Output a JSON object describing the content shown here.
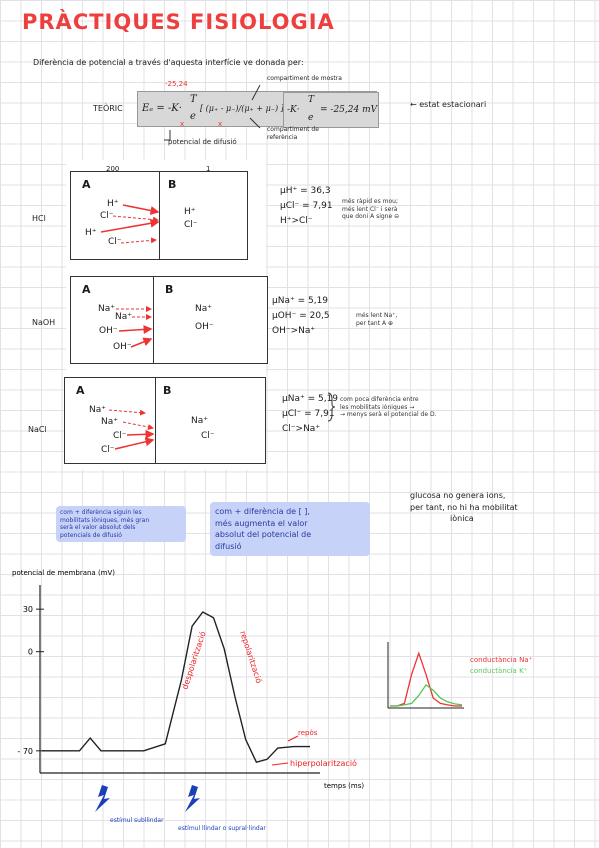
{
  "title": "PRÀCTIQUES FISIOLOGIA",
  "intro": "Diferència de potencial a través d'aquesta interfície ve donada per:",
  "teoric_label": "TEÒRIC",
  "formula": {
    "lhs": "Eₑ = -K·",
    "frac1_num": "T",
    "frac1_den": "e",
    "bracket": "[ (μ₊ - μ₋)/(μ₊ + μ₋) ]·ln",
    "cfrac_num": "c₁",
    "cfrac_den": "c₂",
    "on": "on",
    "rhs_pre": "-K·",
    "rhs_num": "T",
    "rhs_den": "e",
    "rhs_post": "= -25,24 mV"
  },
  "annotations": {
    "val_red": "-25,24",
    "compartiment_mostra": "compartiment de mostra",
    "compartiment_referencia": "compartiment de referència",
    "potencial_difusio": "potencial de difusió",
    "estat_estacionari": "← estat estacionari",
    "mark_200": "200",
    "mark_1": "1"
  },
  "solutions": [
    {
      "row_label": "HCl",
      "a": "A",
      "b": "B",
      "left_ions": [
        "H⁺",
        "Cl⁻",
        "H⁺",
        "Cl⁻"
      ],
      "right_ions": [
        "H⁺",
        "Cl⁻"
      ],
      "mobility": [
        "μH⁺ = 36,3",
        "μCl⁻ = 7,91",
        "H⁺>Cl⁻"
      ],
      "note": [
        "més ràpid es mou;",
        "més lent Cl⁻ i serà",
        "que doni A signe ⊖"
      ]
    },
    {
      "row_label": "NaOH",
      "a": "A",
      "b": "B",
      "left_ions": [
        "Na⁺",
        "Na⁺",
        "OH⁻",
        "OH⁻"
      ],
      "right_ions": [
        "Na⁺",
        "OH⁻"
      ],
      "mobility": [
        "μNa⁺ = 5,19",
        "μOH⁻ = 20,5",
        "OH⁻>Na⁺"
      ],
      "note": [
        "més lent Na⁺,",
        "per tant A ⊕"
      ]
    },
    {
      "row_label": "NaCl",
      "a": "A",
      "b": "B",
      "left_ions": [
        "Na⁺",
        "Na⁺",
        "Cl⁻",
        "Cl⁻"
      ],
      "right_ions": [
        "Na⁺",
        "Cl⁻"
      ],
      "mobility": [
        "μNa⁺ = 5,19",
        "μCl⁻ = 7,91",
        "Cl⁻>Na⁺"
      ],
      "note": [
        "com poca diferència entre",
        "les mobilitats iòniques →",
        "→ menys serà el potencial de D."
      ]
    }
  ],
  "notes": {
    "note1": [
      "com + diferència siguin les",
      "mobilitats iòniques, més gran",
      "serà el valor absolut dels",
      "potencials de difusió"
    ],
    "note2": [
      "com + diferència de [ ],",
      "més augmenta el valor",
      "absolut del potencial de",
      "difusió"
    ],
    "glucosa": [
      "glucosa no genera ions,",
      "per tant, no hi ha mobilitat",
      "iònica"
    ]
  },
  "chart_data": {
    "type": "line",
    "ylabel": "potencial de membrana (mV)",
    "xlabel": "temps (ms)",
    "yticks": [
      30,
      0,
      -70
    ],
    "ylim": [
      -80,
      40
    ],
    "series": [
      {
        "x": [
          0,
          3,
          7,
          9,
          11,
          15,
          19,
          23,
          26,
          28,
          30,
          32,
          34,
          36,
          38,
          40,
          42,
          44,
          47,
          50
        ],
        "values": [
          -70,
          -70,
          -70,
          -61,
          -70,
          -70,
          -70,
          -65,
          -20,
          18,
          28,
          24,
          2,
          -32,
          -62,
          -78,
          -76,
          -68,
          -67,
          -67
        ]
      }
    ],
    "labels": {
      "depol": "despolarització",
      "repol": "repolarització",
      "repos": "repòs",
      "hiperpol": "hiperpolarització",
      "sub": "estímul subllindar",
      "supra": "estímul llindar o supral·lindar"
    }
  },
  "inset_chart": {
    "type": "line",
    "series_labels": [
      "conductància Na⁺",
      "conductància K⁺"
    ],
    "colors": [
      "#ee3333",
      "#55c455"
    ],
    "series": [
      {
        "name": "conductància Na⁺",
        "x": [
          0,
          1,
          2,
          3,
          4,
          5,
          6,
          7,
          8,
          9,
          10
        ],
        "values": [
          0,
          0,
          0.05,
          0.6,
          1,
          0.6,
          0.15,
          0.05,
          0.02,
          0,
          0
        ]
      },
      {
        "name": "conductància K⁺",
        "x": [
          0,
          1,
          2,
          3,
          4,
          5,
          6,
          7,
          8,
          9,
          10
        ],
        "values": [
          0,
          0,
          0.02,
          0.05,
          0.2,
          0.4,
          0.3,
          0.15,
          0.08,
          0.04,
          0.02
        ]
      }
    ]
  }
}
